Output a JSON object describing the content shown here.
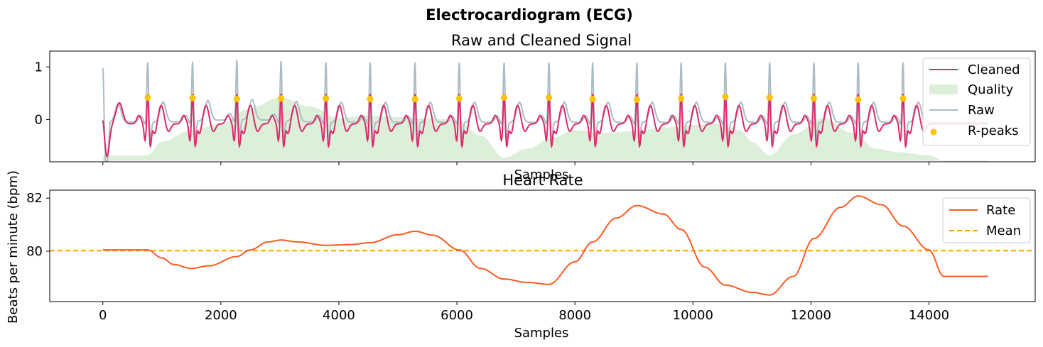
{
  "figure": {
    "title": "Electrocardiogram (ECG)"
  },
  "chart_data": [
    {
      "type": "line",
      "title": "Raw and Cleaned Signal",
      "xlabel": "Samples",
      "ylabel": "",
      "xlim": [
        -900,
        15800
      ],
      "ylim": [
        -0.8,
        1.3
      ],
      "yticks": [
        0,
        1
      ],
      "grid": false,
      "legend_position": "top-right",
      "legend": [
        "Cleaned",
        "Quality",
        "Raw",
        "R-peaks"
      ],
      "colors": {
        "cleaned": "#dc2a6b",
        "quality": "#dcefd9",
        "raw": "#acbcc4",
        "rpeaks": "#ffc300"
      },
      "quality": {
        "x": [
          0,
          750,
          1000,
          1500,
          2000,
          2500,
          3000,
          3500,
          4000,
          4500,
          5000,
          5500,
          6000,
          6400,
          6800,
          7200,
          7600,
          8000,
          8500,
          9000,
          9500,
          10000,
          10400,
          10800,
          11000,
          11300,
          11700,
          12200,
          12700,
          13100,
          13500,
          14000,
          14300,
          15000
        ],
        "y": [
          -0.68,
          -0.68,
          -0.42,
          -0.2,
          -0.08,
          0.22,
          0.42,
          0.25,
          0.03,
          0.08,
          0.05,
          0.02,
          0.0,
          -0.3,
          -0.72,
          -0.55,
          -0.35,
          -0.2,
          -0.25,
          -0.22,
          -0.15,
          -0.1,
          -0.08,
          -0.2,
          -0.42,
          -0.68,
          -0.28,
          0.03,
          -0.25,
          -0.55,
          -0.62,
          -0.68,
          -0.8,
          -0.8
        ]
      },
      "rpeaks": {
        "x": [
          760,
          1520,
          2270,
          3020,
          3780,
          4530,
          5290,
          6040,
          6800,
          7560,
          8300,
          9050,
          9800,
          10550,
          11300,
          12050,
          12800,
          13560
        ],
        "y": [
          0.42,
          0.41,
          0.39,
          0.4,
          0.4,
          0.39,
          0.39,
          0.4,
          0.42,
          0.42,
          0.39,
          0.38,
          0.4,
          0.43,
          0.42,
          0.4,
          0.38,
          0.4
        ]
      }
    },
    {
      "type": "line",
      "title": "Heart Rate",
      "xlabel": "Samples",
      "ylabel": "Beats per minute (bpm)",
      "xlim": [
        -900,
        15800
      ],
      "ylim": [
        78.1,
        82.3
      ],
      "xticks": [
        0,
        2000,
        4000,
        6000,
        8000,
        10000,
        12000,
        14000
      ],
      "yticks": [
        80,
        82
      ],
      "grid": false,
      "legend_position": "top-right",
      "legend": [
        "Rate",
        "Mean"
      ],
      "colors": {
        "rate": "#fc5a20",
        "mean": "#ff9a00"
      },
      "mean": 80.02,
      "rate": {
        "x": [
          0,
          760,
          1000,
          1200,
          1500,
          1800,
          2270,
          2500,
          2800,
          3020,
          3300,
          3780,
          4200,
          4530,
          5000,
          5290,
          5600,
          6040,
          6400,
          6800,
          7200,
          7560,
          8000,
          8300,
          8700,
          9050,
          9500,
          9800,
          10200,
          10550,
          11000,
          11300,
          11700,
          12050,
          12500,
          12800,
          13200,
          13560,
          14000,
          14250,
          15000
        ],
        "y": [
          80.05,
          80.05,
          79.75,
          79.5,
          79.35,
          79.45,
          79.8,
          80.05,
          80.35,
          80.42,
          80.35,
          80.22,
          80.25,
          80.32,
          80.62,
          80.75,
          80.6,
          80.05,
          79.35,
          78.95,
          78.82,
          78.75,
          79.6,
          80.35,
          81.25,
          81.72,
          81.4,
          80.82,
          79.4,
          78.72,
          78.45,
          78.35,
          79.05,
          80.48,
          81.65,
          82.08,
          81.75,
          80.95,
          80.05,
          79.05,
          79.05
        ]
      }
    }
  ]
}
